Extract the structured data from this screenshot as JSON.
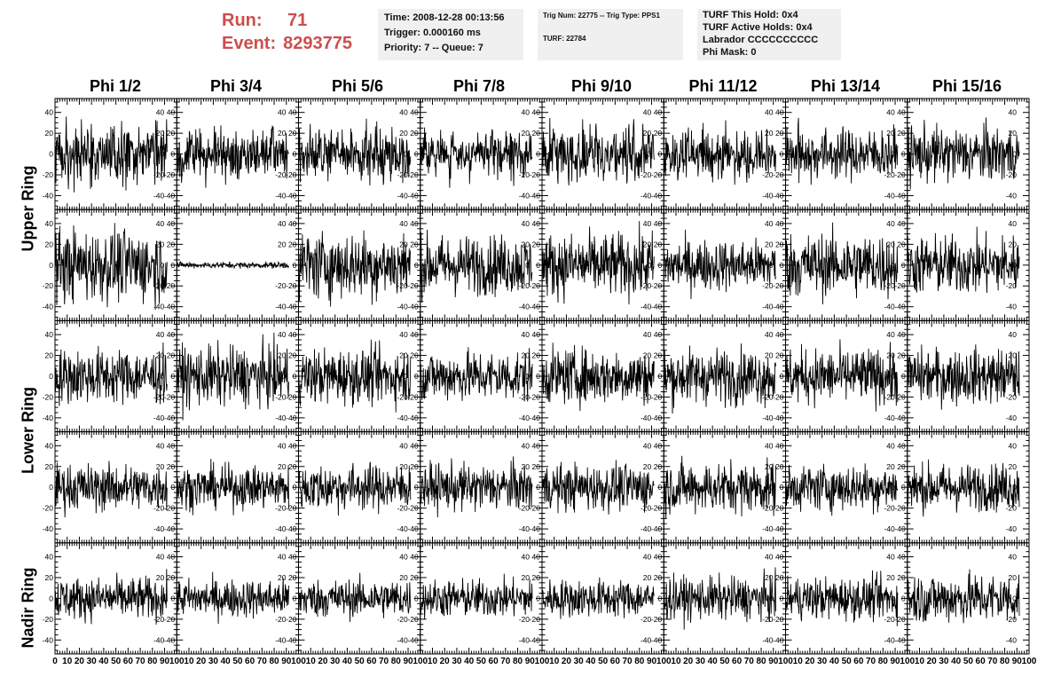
{
  "header": {
    "run_label": "Run:",
    "run_value": "71",
    "event_label": "Event:",
    "event_value": "8293775",
    "run_color": "#cc4e4e"
  },
  "info_boxes": {
    "time": "Time: 2008-12-28 00:13:56",
    "trigger": "Trigger: 0.000160 ms",
    "priority": "Priority: 7 -- Queue: 7",
    "trig_num": "Trig Num: 22775 -- Trig Type: PPS1",
    "turf": "TURF: 22784",
    "turf_this_hold": "TURF This Hold: 0x4",
    "turf_active_holds": "TURF Active Holds: 0x4",
    "labrador": "Labrador CCCCCCCCCC",
    "phi_mask": "Phi Mask: 0"
  },
  "chart_data": {
    "type": "line",
    "columns": [
      "Phi 1/2",
      "Phi 3/4",
      "Phi 5/6",
      "Phi 7/8",
      "Phi 9/10",
      "Phi 11/12",
      "Phi 13/14",
      "Phi 15/16"
    ],
    "rows": [
      "Upper Ring",
      "Upper Ring",
      "Lower Ring",
      "Lower Ring",
      "Nadir Ring"
    ],
    "row_labels": [
      {
        "text": "Upper Ring"
      },
      {
        "text": "Lower Ring"
      },
      {
        "text": "Nadir Ring"
      }
    ],
    "xlim": [
      0,
      100
    ],
    "ylim": [
      -50,
      50
    ],
    "x_ticks": [
      0,
      10,
      20,
      30,
      40,
      50,
      60,
      70,
      80,
      90,
      100
    ],
    "x_tick_labels": [
      "0",
      "10",
      "20",
      "30",
      "40",
      "50",
      "60",
      "70",
      "80",
      "90",
      "100"
    ],
    "y_ticks": [
      -40,
      -20,
      0,
      20,
      40
    ],
    "y_tick_labels": [
      "-40",
      "-20",
      "0",
      "20",
      "40"
    ],
    "samples_per_trace": 260,
    "x_span": [
      0,
      92
    ],
    "line_color": "#000000",
    "amplitudes": [
      [
        15,
        12,
        12,
        11,
        14,
        12,
        12,
        13
      ],
      [
        17,
        1.5,
        16,
        14,
        15,
        12,
        15,
        14
      ],
      [
        13,
        14,
        13,
        12,
        13,
        13,
        13,
        13
      ],
      [
        11,
        10,
        11,
        11,
        11,
        12,
        11,
        11
      ],
      [
        10,
        9,
        9,
        9,
        9,
        10,
        10,
        12
      ]
    ]
  }
}
